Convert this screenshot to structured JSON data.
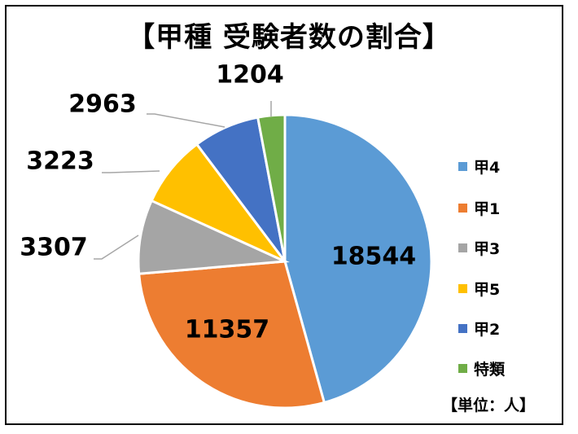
{
  "chart_data": {
    "type": "pie",
    "title": "【甲種 受験者数の割合】",
    "unit_note": "【単位：人】",
    "legend_position": "right",
    "slices": [
      {
        "name": "甲4",
        "value": 18544,
        "label": "18544",
        "color": "#5B9BD5"
      },
      {
        "name": "甲1",
        "value": 11357,
        "label": "11357",
        "color": "#ED7D31"
      },
      {
        "name": "甲3",
        "value": 3307,
        "label": "3307",
        "color": "#A5A5A5"
      },
      {
        "name": "甲5",
        "value": 3223,
        "label": "3223",
        "color": "#FFC000"
      },
      {
        "name": "甲2",
        "value": 2963,
        "label": "2963",
        "color": "#4472C4"
      },
      {
        "name": "特類",
        "value": 1204,
        "label": "1204",
        "color": "#70AD47"
      }
    ]
  }
}
